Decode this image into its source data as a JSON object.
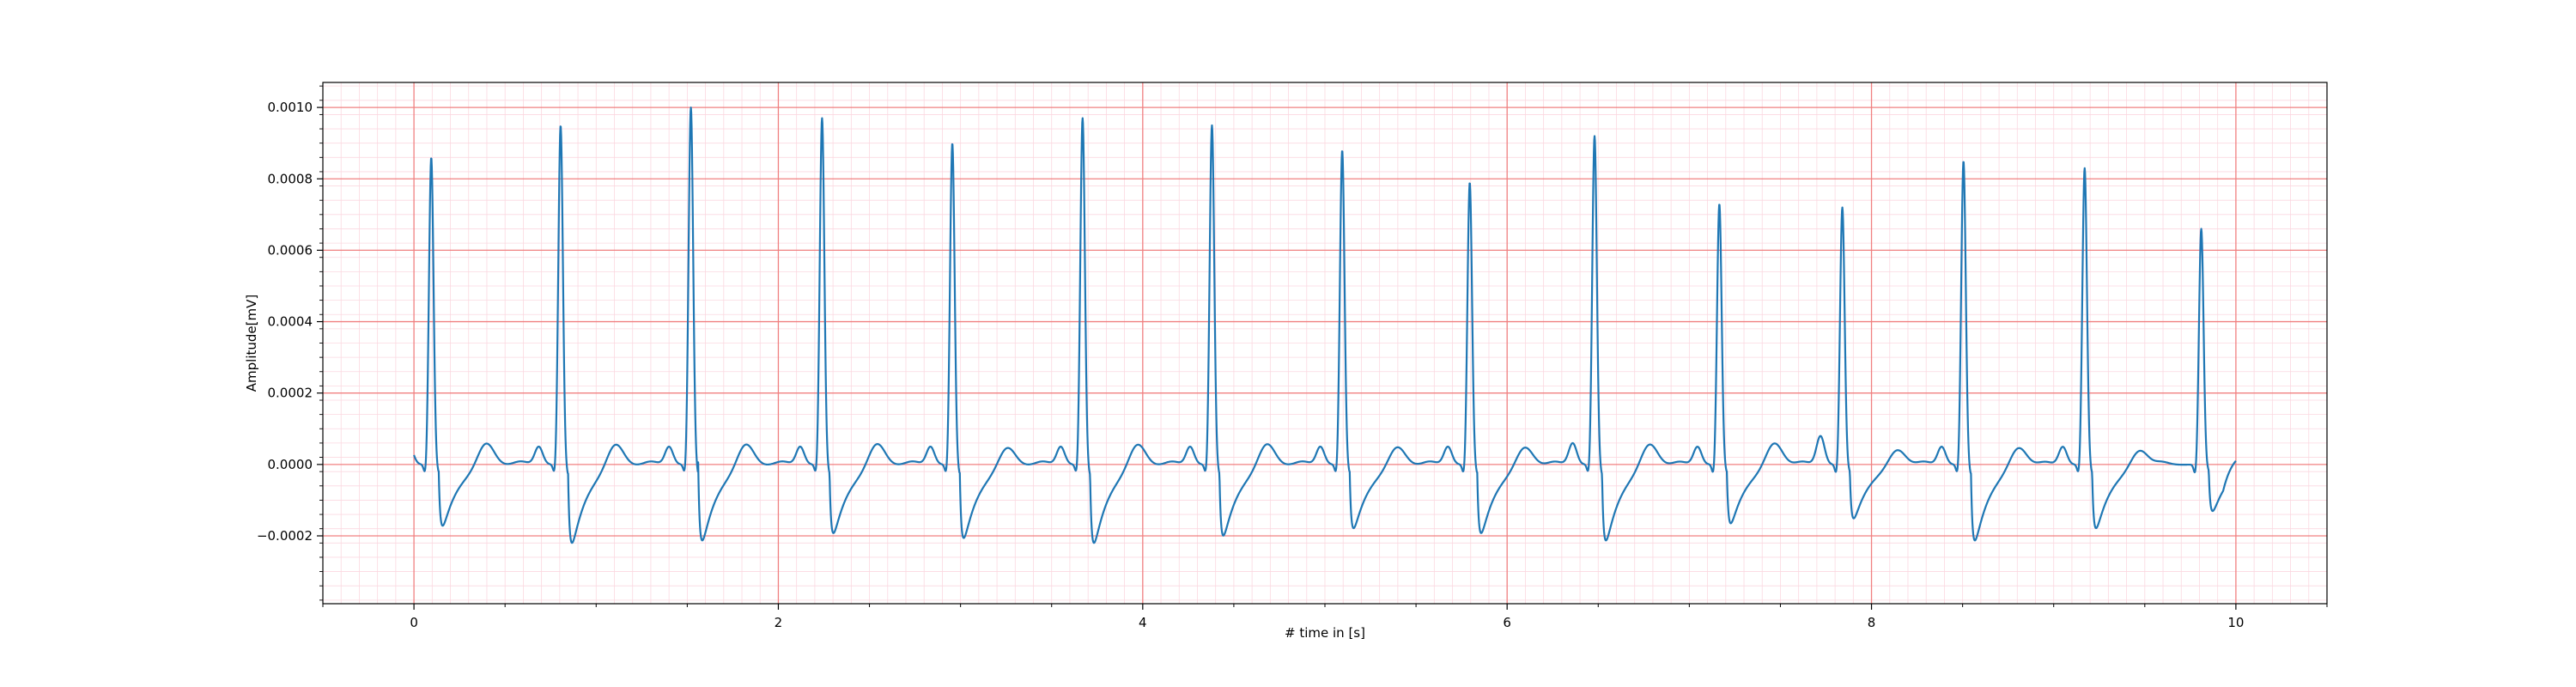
{
  "chart_data": {
    "type": "line",
    "xlabel": "# time in [s]",
    "ylabel": "Amplitude[mV]",
    "xlim": [
      -0.5,
      10.5
    ],
    "ylim": [
      -0.00039,
      0.00107
    ],
    "x_ticks": [
      0,
      2,
      4,
      6,
      8,
      10
    ],
    "x_tick_labels": [
      "0",
      "2",
      "4",
      "6",
      "8",
      "10"
    ],
    "y_ticks": [
      -0.0002,
      0.0,
      0.0002,
      0.0004,
      0.0006,
      0.0008,
      0.001
    ],
    "y_tick_labels": [
      "−0.0002",
      "0.0000",
      "0.0002",
      "0.0004",
      "0.0006",
      "0.0008",
      "0.0010"
    ],
    "grid": true,
    "major_grid_color": "#f08080",
    "minor_grid_color": "#fbd8e0",
    "series": [
      {
        "color": "#1f77b4",
        "beat_times": [
          0.095,
          0.805,
          1.52,
          2.24,
          2.955,
          3.67,
          4.38,
          5.095,
          5.795,
          6.48,
          7.165,
          7.84,
          8.505,
          9.17,
          9.81
        ],
        "r_peaks": [
          0.00086,
          0.00095,
          0.001,
          0.00097,
          0.0009,
          0.00097,
          0.00095,
          0.00088,
          0.00079,
          0.00092,
          0.00073,
          0.00072,
          0.00085,
          0.00083,
          0.00066
        ],
        "s_troughs": [
          -0.00025,
          -0.00032,
          -0.00031,
          -0.00028,
          -0.0003,
          -0.00032,
          -0.00029,
          -0.00026,
          -0.00028,
          -0.00031,
          -0.00024,
          -0.00022,
          -0.00031,
          -0.00026,
          -0.00019
        ],
        "t_peaks": [
          7e-05,
          7e-05,
          7e-05,
          7e-05,
          6e-05,
          7e-05,
          7e-05,
          6e-05,
          6e-05,
          7e-05,
          7e-05,
          5e-05,
          6e-05,
          5e-05,
          5e-05
        ],
        "p_peaks": [
          5e-05,
          5e-05,
          5e-05,
          5e-05,
          5e-05,
          5e-05,
          5e-05,
          5e-05,
          5e-05,
          6e-05,
          5e-05,
          8e-05,
          5e-05,
          5e-05,
          0.0
        ],
        "end_time": 10.0,
        "end_value": 1e-05
      }
    ]
  }
}
